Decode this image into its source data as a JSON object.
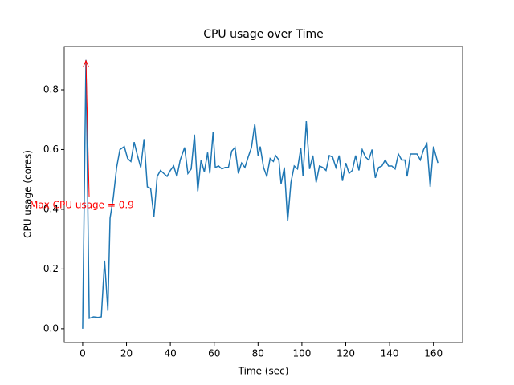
{
  "chart_data": {
    "type": "line",
    "title": "CPU usage over Time",
    "xlabel": "Time (sec)",
    "ylabel": "CPU usage (cores)",
    "x": [
      0,
      1.5,
      3,
      5,
      7,
      8.5,
      10,
      11.5,
      12.5,
      14,
      15.5,
      17,
      19,
      20.5,
      22,
      23.5,
      25,
      26.5,
      28,
      29.5,
      31,
      32.5,
      34,
      35.5,
      37,
      38.5,
      40,
      41.5,
      43,
      44.5,
      46.5,
      48,
      49.5,
      51,
      52.5,
      54,
      55.5,
      57,
      58,
      59.5,
      60.5,
      62,
      63.5,
      65,
      66.5,
      68,
      69.5,
      71,
      72.5,
      74,
      75.5,
      77,
      78.5,
      80,
      81,
      82.5,
      84,
      85.5,
      87,
      88,
      89.5,
      90.5,
      92,
      93.5,
      95,
      96.5,
      98,
      99.5,
      100.5,
      102,
      103.5,
      105,
      106.5,
      108,
      109.5,
      111,
      112.5,
      114,
      115.5,
      117,
      118.5,
      120,
      121.5,
      123,
      124.5,
      126,
      127.5,
      129,
      130.5,
      132,
      133.5,
      135,
      136.5,
      138,
      139.5,
      141,
      142.5,
      144,
      145.5,
      147,
      148,
      149.5,
      151,
      152.5,
      154,
      155.5,
      157,
      158.5,
      160,
      162
    ],
    "series": [
      {
        "name": "CPU usage",
        "color": "#1f77b4",
        "values": [
          0.0,
          0.9,
          0.035,
          0.04,
          0.038,
          0.04,
          0.228,
          0.06,
          0.37,
          0.44,
          0.54,
          0.6,
          0.61,
          0.57,
          0.56,
          0.625,
          0.58,
          0.54,
          0.635,
          0.475,
          0.47,
          0.375,
          0.51,
          0.53,
          0.52,
          0.51,
          0.53,
          0.545,
          0.51,
          0.565,
          0.607,
          0.52,
          0.535,
          0.65,
          0.46,
          0.565,
          0.525,
          0.59,
          0.52,
          0.66,
          0.54,
          0.545,
          0.535,
          0.54,
          0.54,
          0.595,
          0.607,
          0.52,
          0.555,
          0.54,
          0.575,
          0.607,
          0.685,
          0.58,
          0.61,
          0.54,
          0.51,
          0.57,
          0.56,
          0.58,
          0.565,
          0.485,
          0.54,
          0.36,
          0.49,
          0.545,
          0.535,
          0.605,
          0.51,
          0.695,
          0.535,
          0.58,
          0.49,
          0.545,
          0.54,
          0.53,
          0.58,
          0.575,
          0.54,
          0.58,
          0.495,
          0.555,
          0.52,
          0.53,
          0.58,
          0.53,
          0.6,
          0.575,
          0.565,
          0.6,
          0.505,
          0.54,
          0.545,
          0.565,
          0.545,
          0.545,
          0.535,
          0.585,
          0.565,
          0.565,
          0.51,
          0.585,
          0.585,
          0.585,
          0.565,
          0.6,
          0.62,
          0.475,
          0.61,
          0.555
        ]
      }
    ],
    "xlim": [
      -8.4,
      173.3
    ],
    "ylim": [
      -0.046,
      0.945
    ],
    "xticks": [
      0,
      20,
      40,
      60,
      80,
      100,
      120,
      140,
      160
    ],
    "yticks": [
      {
        "value": 0.0,
        "label": "0.0"
      },
      0.2,
      0.4,
      0.6,
      0.8
    ],
    "annotation": {
      "text": "Max CPU usage = 0.9",
      "color": "red"
    }
  }
}
